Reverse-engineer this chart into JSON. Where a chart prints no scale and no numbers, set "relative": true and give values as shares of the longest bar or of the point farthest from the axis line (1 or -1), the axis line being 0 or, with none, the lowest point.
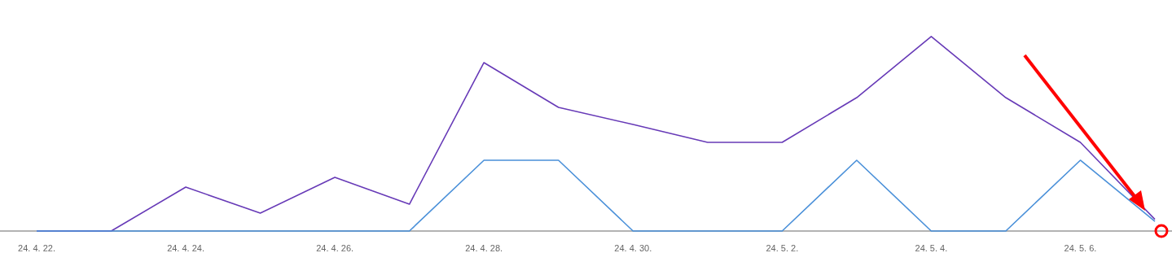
{
  "chart_data": {
    "type": "line",
    "relative": true,
    "marker": "none",
    "categories": [
      "24. 4. 22.",
      null,
      "24. 4. 24.",
      null,
      "24. 4. 26.",
      null,
      "24. 4. 28.",
      null,
      "24. 4. 30.",
      null,
      "24. 5. 2.",
      null,
      "24. 5. 4.",
      null,
      "24. 5. 6.",
      null
    ],
    "series": [
      {
        "color": "#673ab7",
        "values": [
          0,
          0,
          0.226,
          0.092,
          0.276,
          0.138,
          0.866,
          0.636,
          0.548,
          0.456,
          0.456,
          0.686,
          1,
          0.686,
          0.456,
          0.06
        ]
      },
      {
        "color": "#4a90d9",
        "values": [
          0,
          0,
          0,
          0,
          0,
          0,
          0.364,
          0.364,
          0,
          0,
          0,
          0.364,
          0,
          0,
          0.364,
          0.05
        ]
      }
    ]
  }
}
